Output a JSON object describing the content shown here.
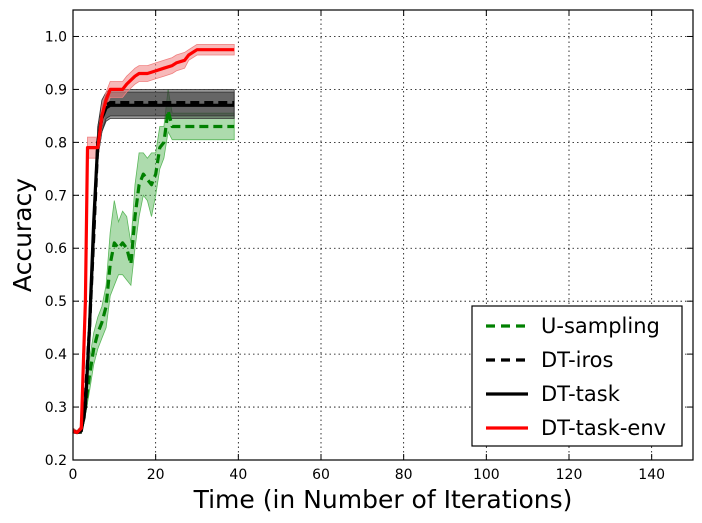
{
  "chart_data": {
    "type": "line",
    "xlabel": "Time (in Number of Iterations)",
    "ylabel": "Accuracy",
    "xlim": [
      0,
      150
    ],
    "ylim": [
      0.2,
      1.05
    ],
    "x_ticks": [
      0,
      20,
      40,
      60,
      80,
      100,
      120,
      140
    ],
    "y_ticks": [
      0.2,
      0.3,
      0.4,
      0.5,
      0.6,
      0.7,
      0.8,
      0.9,
      1.0
    ],
    "x_tick_labels": [
      "0",
      "20",
      "40",
      "60",
      "80",
      "100",
      "120",
      "140"
    ],
    "y_tick_labels": [
      "0.2",
      "0.3",
      "0.4",
      "0.5",
      "0.6",
      "0.7",
      "0.8",
      "0.9",
      "1.0"
    ],
    "grid": true,
    "legend_position": "bottom-right",
    "series": [
      {
        "name": "U-sampling",
        "color": "#008000",
        "band_color": "#5cb85c",
        "style": "dashed",
        "x": [
          0,
          1,
          2,
          3,
          4,
          5,
          6,
          7,
          8,
          9,
          10,
          11,
          12,
          13,
          14,
          15,
          16,
          17,
          18,
          19,
          20,
          21,
          22,
          23,
          24,
          25,
          30,
          35,
          39
        ],
        "y": [
          0.255,
          0.252,
          0.255,
          0.3,
          0.36,
          0.41,
          0.44,
          0.46,
          0.49,
          0.57,
          0.61,
          0.6,
          0.61,
          0.6,
          0.57,
          0.66,
          0.72,
          0.74,
          0.73,
          0.72,
          0.74,
          0.79,
          0.8,
          0.86,
          0.83,
          0.83,
          0.83,
          0.83,
          0.83
        ],
        "lower": [
          0.25,
          0.25,
          0.25,
          0.285,
          0.33,
          0.38,
          0.41,
          0.43,
          0.45,
          0.51,
          0.53,
          0.55,
          0.55,
          0.54,
          0.53,
          0.6,
          0.66,
          0.7,
          0.69,
          0.66,
          0.7,
          0.75,
          0.77,
          0.82,
          0.805,
          0.805,
          0.805,
          0.805,
          0.805
        ],
        "upper": [
          0.26,
          0.255,
          0.26,
          0.315,
          0.39,
          0.44,
          0.47,
          0.49,
          0.53,
          0.63,
          0.69,
          0.65,
          0.67,
          0.66,
          0.61,
          0.72,
          0.78,
          0.78,
          0.77,
          0.78,
          0.78,
          0.83,
          0.83,
          0.9,
          0.855,
          0.855,
          0.855,
          0.855,
          0.855
        ]
      },
      {
        "name": "DT-iros",
        "color": "#000000",
        "band_color": "#333333",
        "style": "dashed",
        "x": [
          0,
          1,
          2,
          3,
          4,
          5,
          6,
          7,
          8,
          9,
          10,
          12,
          15,
          20,
          25,
          30,
          35,
          39
        ],
        "y": [
          0.255,
          0.252,
          0.26,
          0.32,
          0.45,
          0.62,
          0.8,
          0.85,
          0.87,
          0.875,
          0.875,
          0.875,
          0.875,
          0.875,
          0.875,
          0.875,
          0.875,
          0.875
        ],
        "lower": [
          0.25,
          0.25,
          0.255,
          0.3,
          0.42,
          0.58,
          0.77,
          0.82,
          0.845,
          0.85,
          0.85,
          0.85,
          0.85,
          0.85,
          0.85,
          0.85,
          0.85,
          0.85
        ],
        "upper": [
          0.26,
          0.255,
          0.265,
          0.34,
          0.48,
          0.66,
          0.83,
          0.88,
          0.895,
          0.9,
          0.9,
          0.9,
          0.9,
          0.9,
          0.9,
          0.9,
          0.9,
          0.9
        ]
      },
      {
        "name": "DT-task",
        "color": "#000000",
        "band_color": "#333333",
        "style": "solid",
        "x": [
          0,
          1,
          2,
          3,
          4,
          5,
          6,
          7,
          8,
          9,
          10,
          12,
          15,
          20,
          25,
          30,
          35,
          39
        ],
        "y": [
          0.255,
          0.252,
          0.255,
          0.3,
          0.45,
          0.65,
          0.8,
          0.845,
          0.865,
          0.87,
          0.87,
          0.87,
          0.87,
          0.87,
          0.87,
          0.87,
          0.87,
          0.87
        ],
        "lower": [
          0.25,
          0.25,
          0.25,
          0.28,
          0.42,
          0.62,
          0.77,
          0.82,
          0.84,
          0.845,
          0.845,
          0.845,
          0.845,
          0.845,
          0.845,
          0.845,
          0.845,
          0.845
        ],
        "upper": [
          0.26,
          0.255,
          0.26,
          0.32,
          0.48,
          0.68,
          0.83,
          0.87,
          0.89,
          0.895,
          0.895,
          0.895,
          0.895,
          0.895,
          0.895,
          0.895,
          0.895,
          0.895
        ]
      },
      {
        "name": "DT-task-env",
        "color": "#ff0000",
        "band_color": "#f08080",
        "style": "solid",
        "x": [
          0,
          1,
          2,
          3,
          3.5,
          4,
          5,
          6,
          7,
          8,
          9,
          10,
          12,
          13,
          15,
          16,
          18,
          20,
          22,
          24,
          25,
          27,
          28,
          30,
          32,
          35,
          39
        ],
        "y": [
          0.255,
          0.252,
          0.26,
          0.5,
          0.79,
          0.79,
          0.79,
          0.79,
          0.85,
          0.88,
          0.9,
          0.9,
          0.9,
          0.91,
          0.925,
          0.93,
          0.93,
          0.935,
          0.94,
          0.945,
          0.95,
          0.955,
          0.965,
          0.975,
          0.975,
          0.975,
          0.975
        ],
        "lower": [
          0.25,
          0.25,
          0.255,
          0.45,
          0.77,
          0.77,
          0.77,
          0.77,
          0.83,
          0.865,
          0.885,
          0.885,
          0.885,
          0.895,
          0.91,
          0.915,
          0.915,
          0.92,
          0.925,
          0.93,
          0.935,
          0.94,
          0.955,
          0.965,
          0.965,
          0.965,
          0.965
        ],
        "upper": [
          0.26,
          0.255,
          0.265,
          0.55,
          0.81,
          0.81,
          0.81,
          0.81,
          0.87,
          0.895,
          0.915,
          0.915,
          0.915,
          0.925,
          0.94,
          0.945,
          0.945,
          0.95,
          0.955,
          0.96,
          0.965,
          0.97,
          0.975,
          0.985,
          0.985,
          0.985,
          0.985
        ]
      }
    ]
  }
}
